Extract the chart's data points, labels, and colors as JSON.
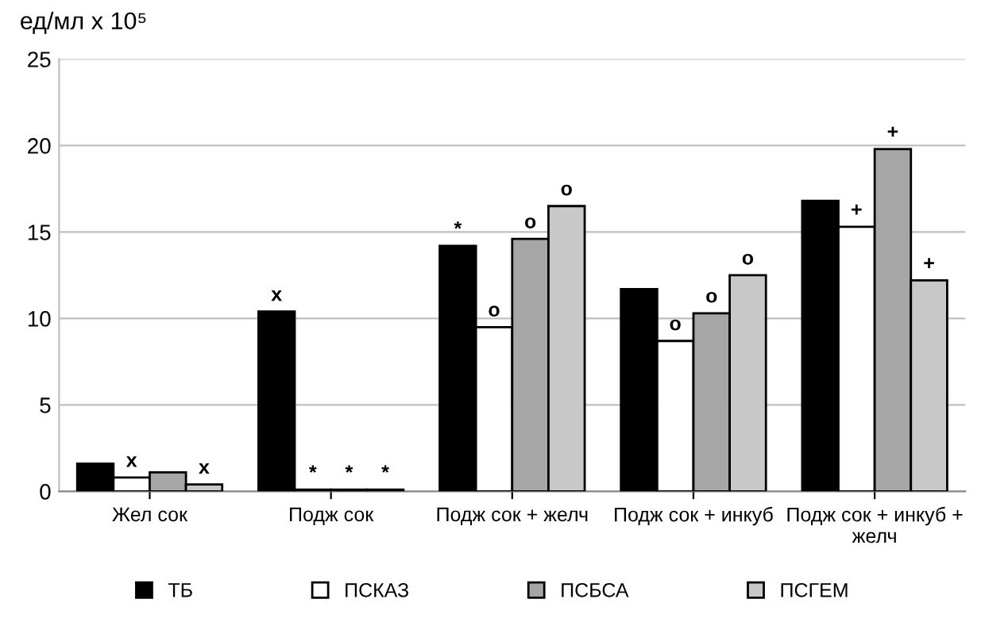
{
  "chart_data": {
    "type": "bar",
    "ylabel": "ед/мл x 10⁵",
    "categories": [
      "Жел сок",
      "Подж сок",
      "Подж сок + желч",
      "Подж сок + инкуб",
      "Подж сок + инкуб + желч"
    ],
    "series": [
      {
        "name": "ТБ",
        "color": "#000000",
        "values": [
          1.6,
          10.4,
          14.2,
          11.7,
          16.8
        ],
        "value_labels": [
          null,
          "x",
          "*",
          null,
          null
        ]
      },
      {
        "name": "ПСКАЗ",
        "color": "#ffffff",
        "values": [
          0.8,
          0.1,
          9.5,
          8.7,
          15.3
        ],
        "value_labels": [
          "x",
          "*",
          "o",
          "o",
          "+"
        ]
      },
      {
        "name": "ПСБСА",
        "color": "#a6a6a6",
        "values": [
          1.1,
          0.1,
          14.6,
          10.3,
          19.8
        ],
        "value_labels": [
          null,
          "*",
          "o",
          "o",
          "+"
        ]
      },
      {
        "name": "ПСГЕМ",
        "color": "#c8c8c8",
        "values": [
          0.4,
          0.1,
          16.5,
          12.5,
          12.2
        ],
        "value_labels": [
          "x",
          "*",
          "o",
          "o",
          "+"
        ]
      }
    ],
    "ylim": [
      0,
      25
    ],
    "yticks": [
      0,
      5,
      10,
      15,
      20,
      25
    ],
    "grid": "y",
    "legend": "bottom"
  }
}
